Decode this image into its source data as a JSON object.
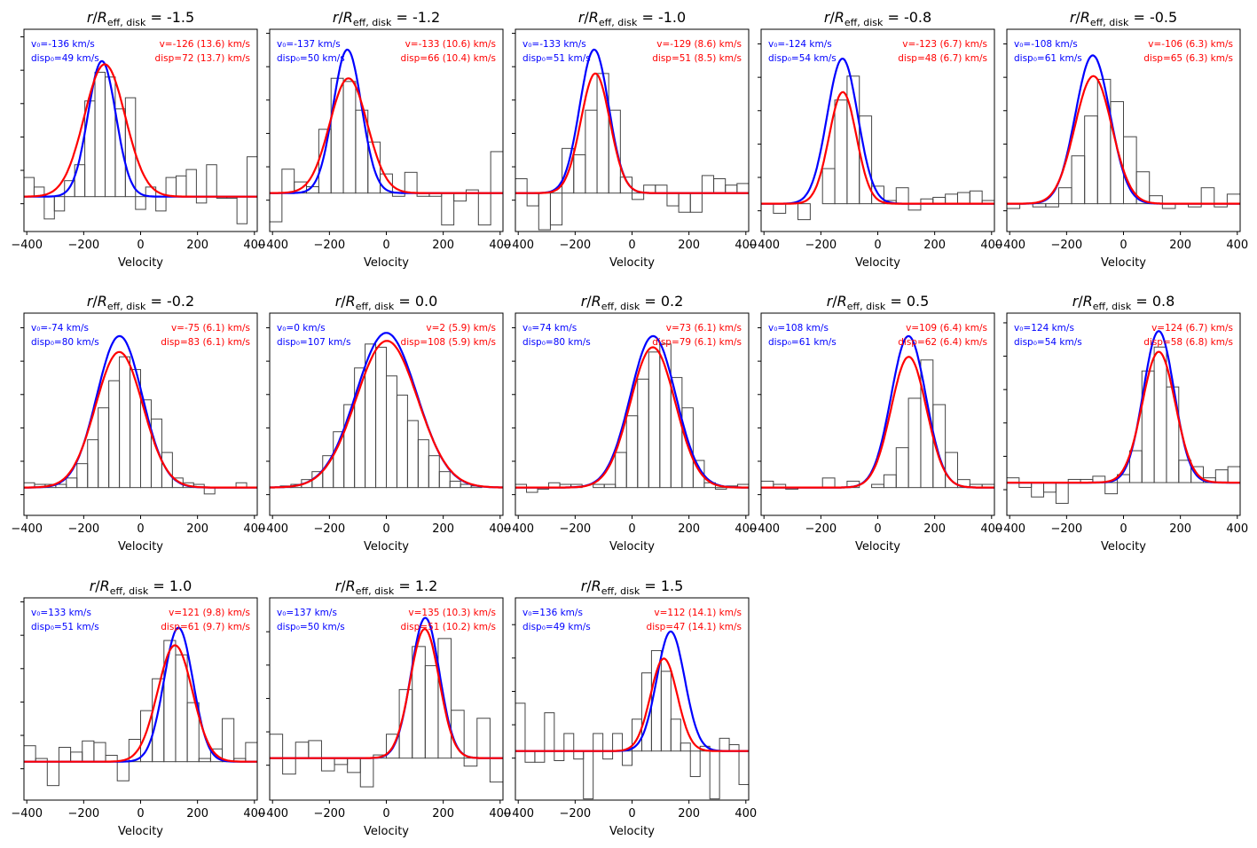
{
  "figure": {
    "xlabel": "Velocity",
    "title_prefix": "r/R",
    "title_sub": "eff, disk",
    "title_eq": "= "
  },
  "colors": {
    "model": "#0000ff",
    "fit": "#ff0000",
    "hist": "#444444",
    "axes": "#000000"
  },
  "chart_data": [
    {
      "type": "bar",
      "title": "r/Reff,disk = -1.5",
      "r": "-1.5",
      "xlim": [
        -410,
        410
      ],
      "xticks": [
        -400,
        -200,
        0,
        200,
        400
      ],
      "model_label": [
        "v₀=-136 km/s",
        "disp₀=49 km/s"
      ],
      "fit_label": [
        "v=-126 (13.6) km/s",
        "disp=72 (13.7) km/s"
      ],
      "model": {
        "v0": -136,
        "disp": 49,
        "amp": 0.85
      },
      "fit": {
        "v": -126,
        "disp": 72,
        "amp": 0.83
      },
      "baseline": 0.15,
      "hist": [
        0.12,
        0.06,
        -0.14,
        -0.09,
        0.1,
        0.2,
        0.6,
        0.78,
        0.75,
        0.55,
        0.62,
        -0.08,
        0.06,
        -0.09,
        0.12,
        0.13,
        0.17,
        -0.04,
        0.2,
        -0.01,
        -0.01,
        -0.17,
        0.25
      ]
    },
    {
      "type": "bar",
      "title": "r/Reff,disk = -1.2",
      "r": "-1.2",
      "xlim": [
        -410,
        410
      ],
      "xticks": [
        -400,
        -200,
        0,
        200,
        400
      ],
      "model_label": [
        "v₀=-137 km/s",
        "disp₀=50 km/s"
      ],
      "fit_label": [
        "v=-133 (10.6) km/s",
        "disp=66 (10.4) km/s"
      ],
      "model": {
        "v0": -137,
        "disp": 50,
        "amp": 0.9
      },
      "fit": {
        "v": -133,
        "disp": 66,
        "amp": 0.72
      },
      "baseline": 0.2,
      "hist": [
        -0.18,
        0.15,
        0.07,
        0.04,
        0.4,
        0.72,
        0.7,
        0.52,
        0.32,
        0.12,
        -0.02,
        0.13,
        -0.02,
        -0.02,
        -0.2,
        -0.05,
        0.02,
        -0.2,
        0.26
      ]
    },
    {
      "type": "bar",
      "title": "r/Reff,disk = -1.0",
      "r": "-1.0",
      "xlim": [
        -410,
        410
      ],
      "xticks": [
        -400,
        -200,
        0,
        200,
        400
      ],
      "model_label": [
        "v₀=-133 km/s",
        "disp₀=51 km/s"
      ],
      "fit_label": [
        "v=-129 (8.6) km/s",
        "disp=51 (8.5) km/s"
      ],
      "model": {
        "v0": -133,
        "disp": 51,
        "amp": 0.9
      },
      "fit": {
        "v": -129,
        "disp": 51,
        "amp": 0.75
      },
      "baseline": 0.2,
      "hist": [
        0.09,
        -0.08,
        -0.23,
        -0.2,
        0.28,
        0.24,
        0.52,
        0.75,
        0.52,
        0.1,
        -0.04,
        0.05,
        0.05,
        -0.08,
        -0.12,
        -0.12,
        0.11,
        0.09,
        0.05,
        0.06
      ]
    },
    {
      "type": "bar",
      "title": "r/Reff,disk = -0.8",
      "r": "-0.8",
      "xlim": [
        -410,
        410
      ],
      "xticks": [
        -400,
        -200,
        0,
        200,
        400
      ],
      "model_label": [
        "v₀=-124 km/s",
        "disp₀=54 km/s"
      ],
      "fit_label": [
        "v=-123 (6.7) km/s",
        "disp=48 (6.7) km/s"
      ],
      "model": {
        "v0": -124,
        "disp": 54,
        "amp": 0.91
      },
      "fit": {
        "v": -123,
        "disp": 48,
        "amp": 0.7
      },
      "baseline": 0.05,
      "hist": [
        0.0,
        -0.06,
        0.0,
        -0.1,
        0.0,
        0.22,
        0.65,
        0.8,
        0.55,
        0.11,
        0.02,
        0.1,
        -0.04,
        0.03,
        0.04,
        0.06,
        0.07,
        0.08,
        0.02
      ]
    },
    {
      "type": "bar",
      "title": "r/Reff,disk = -0.5",
      "r": "-0.5",
      "xlim": [
        -410,
        410
      ],
      "xticks": [
        -400,
        -200,
        0,
        200,
        400
      ],
      "model_label": [
        "v₀=-108 km/s",
        "disp₀=61 km/s"
      ],
      "fit_label": [
        "v=-106 (6.3) km/s",
        "disp=65 (6.3) km/s"
      ],
      "model": {
        "v0": -108,
        "disp": 61,
        "amp": 0.93
      },
      "fit": {
        "v": -106,
        "disp": 65,
        "amp": 0.8
      },
      "baseline": 0.05,
      "hist": [
        -0.03,
        0.0,
        -0.02,
        -0.02,
        0.1,
        0.3,
        0.55,
        0.78,
        0.64,
        0.42,
        0.2,
        0.05,
        -0.03,
        0.0,
        -0.02,
        0.1,
        -0.02,
        0.06
      ]
    },
    {
      "type": "bar",
      "title": "r/Reff,disk = -0.2",
      "r": "-0.2",
      "xlim": [
        -410,
        410
      ],
      "xticks": [
        -400,
        -200,
        0,
        200,
        400
      ],
      "model_label": [
        "v₀=-74 km/s",
        "disp₀=80 km/s"
      ],
      "fit_label": [
        "v=-75 (6.1) km/s",
        "disp=83 (6.1) km/s"
      ],
      "model": {
        "v0": -74,
        "disp": 80,
        "amp": 0.95
      },
      "fit": {
        "v": -75,
        "disp": 83,
        "amp": 0.85
      },
      "baseline": 0.05,
      "hist": [
        0.03,
        0.02,
        0.02,
        0.02,
        0.06,
        0.15,
        0.3,
        0.5,
        0.67,
        0.82,
        0.74,
        0.55,
        0.43,
        0.22,
        0.06,
        0.03,
        0.02,
        -0.04,
        0.0,
        0.0,
        0.03,
        0.0
      ]
    },
    {
      "type": "bar",
      "title": "r/Reff,disk = 0.0",
      "r": "0.0",
      "xlim": [
        -410,
        410
      ],
      "xticks": [
        -400,
        -200,
        0,
        200,
        400
      ],
      "model_label": [
        "v₀=0 km/s",
        "disp₀=107 km/s"
      ],
      "fit_label": [
        "v=2 (5.9) km/s",
        "disp=108 (5.9) km/s"
      ],
      "model": {
        "v0": 0,
        "disp": 107,
        "amp": 0.97
      },
      "fit": {
        "v": 2,
        "disp": 108,
        "amp": 0.92
      },
      "baseline": 0.05,
      "hist": [
        0.0,
        0.01,
        0.02,
        0.05,
        0.1,
        0.2,
        0.35,
        0.52,
        0.75,
        0.9,
        0.88,
        0.7,
        0.58,
        0.42,
        0.3,
        0.2,
        0.1,
        0.04,
        0.02,
        0.01,
        0.0,
        0.0
      ]
    },
    {
      "type": "bar",
      "title": "r/Reff,disk = 0.2",
      "r": "0.2",
      "xlim": [
        -410,
        410
      ],
      "xticks": [
        -400,
        -200,
        0,
        200,
        400
      ],
      "model_label": [
        "v₀=74 km/s",
        "disp₀=80 km/s"
      ],
      "fit_label": [
        "v=73 (6.1) km/s",
        "disp=79 (6.1) km/s"
      ],
      "model": {
        "v0": 74,
        "disp": 80,
        "amp": 0.95
      },
      "fit": {
        "v": 73,
        "disp": 79,
        "amp": 0.88
      },
      "baseline": 0.05,
      "hist": [
        0.02,
        -0.03,
        -0.01,
        0.03,
        0.02,
        0.02,
        0.0,
        0.02,
        0.02,
        0.22,
        0.45,
        0.68,
        0.85,
        0.9,
        0.69,
        0.5,
        0.17,
        0.03,
        -0.01,
        0.01,
        0.02
      ]
    },
    {
      "type": "bar",
      "title": "r/Reff,disk = 0.5",
      "r": "0.5",
      "xlim": [
        -410,
        410
      ],
      "xticks": [
        -400,
        -200,
        0,
        200,
        400
      ],
      "model_label": [
        "v₀=108 km/s",
        "disp₀=61 km/s"
      ],
      "fit_label": [
        "v=109 (6.4) km/s",
        "disp=62 (6.4) km/s"
      ],
      "model": {
        "v0": 108,
        "disp": 61,
        "amp": 0.95
      },
      "fit": {
        "v": 109,
        "disp": 62,
        "amp": 0.82
      },
      "baseline": 0.05,
      "hist": [
        0.04,
        0.02,
        -0.01,
        0.0,
        0.0,
        0.06,
        0.0,
        0.04,
        0.0,
        0.02,
        0.08,
        0.25,
        0.56,
        0.8,
        0.52,
        0.22,
        0.05,
        0.02,
        0.02
      ]
    },
    {
      "type": "bar",
      "title": "r/Reff,disk = 0.8",
      "r": "0.8",
      "xlim": [
        -410,
        410
      ],
      "xticks": [
        -400,
        -200,
        0,
        200,
        400
      ],
      "model_label": [
        "v₀=124 km/s",
        "disp₀=54 km/s"
      ],
      "fit_label": [
        "v=124 (6.7) km/s",
        "disp=58 (6.8) km/s"
      ],
      "model": {
        "v0": 124,
        "disp": 54,
        "amp": 0.95
      },
      "fit": {
        "v": 124,
        "disp": 58,
        "amp": 0.82
      },
      "baseline": 0.12,
      "hist": [
        0.03,
        -0.03,
        -0.09,
        -0.06,
        -0.13,
        0.02,
        0.02,
        0.04,
        -0.07,
        0.05,
        0.2,
        0.7,
        0.85,
        0.6,
        0.14,
        0.1,
        0.03,
        0.08,
        0.1
      ]
    },
    {
      "type": "bar",
      "title": "r/Reff,disk = 1.0",
      "r": "1.0",
      "xlim": [
        -410,
        410
      ],
      "xticks": [
        -400,
        -200,
        0,
        200,
        400
      ],
      "model_label": [
        "v₀=133 km/s",
        "disp₀=51 km/s"
      ],
      "fit_label": [
        "v=121 (9.8) km/s",
        "disp=61 (9.7) km/s"
      ],
      "model": {
        "v0": 133,
        "disp": 51,
        "amp": 0.84
      },
      "fit": {
        "v": 121,
        "disp": 61,
        "amp": 0.73
      },
      "baseline": 0.2,
      "hist": [
        0.1,
        0.02,
        -0.15,
        0.09,
        0.06,
        0.13,
        0.12,
        0.04,
        -0.12,
        0.14,
        0.32,
        0.52,
        0.76,
        0.67,
        0.37,
        0.02,
        0.08,
        0.27,
        0.02,
        0.12
      ]
    },
    {
      "type": "bar",
      "title": "r/Reff,disk = 1.2",
      "r": "1.2",
      "xlim": [
        -410,
        410
      ],
      "xticks": [
        -400,
        -200,
        0,
        200,
        400
      ],
      "model_label": [
        "v₀=137 km/s",
        "disp₀=50 km/s"
      ],
      "fit_label": [
        "v=135 (10.3) km/s",
        "disp=51 (10.2) km/s"
      ],
      "model": {
        "v0": 137,
        "disp": 50,
        "amp": 0.88
      },
      "fit": {
        "v": 135,
        "disp": 51,
        "amp": 0.81
      },
      "baseline": 0.25,
      "hist": [
        0.15,
        -0.1,
        0.1,
        0.11,
        -0.08,
        -0.04,
        -0.09,
        -0.18,
        0.02,
        0.15,
        0.43,
        0.7,
        0.58,
        0.75,
        0.3,
        -0.05,
        0.25,
        -0.15
      ]
    },
    {
      "type": "bar",
      "title": "r/Reff,disk = 1.5",
      "r": "1.5",
      "xlim": [
        -410,
        410
      ],
      "xticks": [
        -400,
        -200,
        0,
        200,
        400
      ],
      "model_label": [
        "v₀=136 km/s",
        "disp₀=49 km/s"
      ],
      "fit_label": [
        "v=112 (14.1) km/s",
        "disp=47 (14.1) km/s"
      ],
      "model": {
        "v0": 136,
        "disp": 49,
        "amp": 0.75
      },
      "fit": {
        "v": 112,
        "disp": 47,
        "amp": 0.58
      },
      "baseline": 0.35,
      "hist": [
        0.3,
        -0.07,
        -0.07,
        0.24,
        -0.06,
        0.11,
        -0.05,
        -0.3,
        0.11,
        -0.05,
        0.11,
        -0.09,
        0.2,
        0.49,
        0.63,
        0.5,
        0.2,
        0.05,
        -0.16,
        0.03,
        -0.3,
        0.08,
        0.04,
        -0.21
      ]
    }
  ]
}
